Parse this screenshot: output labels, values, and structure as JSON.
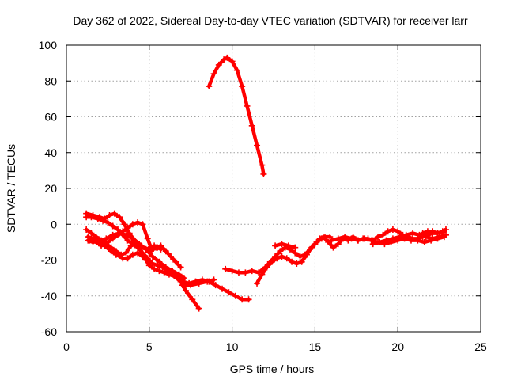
{
  "chart_data": {
    "type": "line",
    "title": "Day 362 of 2022, Sidereal Day-to-day VTEC variation (SDTVAR) for receiver larr",
    "xlabel": "GPS time / hours",
    "ylabel": "SDTVAR / TECUs",
    "xlim": [
      0,
      25
    ],
    "ylim": [
      -60,
      100
    ],
    "xticks": [
      0,
      5,
      10,
      15,
      20,
      25
    ],
    "yticks": [
      -60,
      -40,
      -20,
      0,
      20,
      40,
      60,
      80,
      100
    ],
    "grid": true,
    "series_color": "#ff0000",
    "series": [
      {
        "x": [
          8.6,
          8.9,
          9.2,
          9.5,
          9.7,
          10.0,
          10.3,
          10.6,
          10.9,
          11.2,
          11.5,
          11.8,
          11.9
        ],
        "y": [
          77,
          84,
          89,
          92,
          93,
          91,
          86,
          77,
          66,
          55,
          44,
          33,
          28
        ]
      },
      {
        "x": [
          1.2,
          1.6,
          2.0,
          2.3,
          2.6,
          2.9,
          3.2,
          3.5,
          3.8,
          4.1,
          4.4,
          4.7,
          5.0,
          5.3,
          5.6,
          5.9,
          6.2,
          6.5,
          6.9,
          7.2,
          7.6,
          8.0
        ],
        "y": [
          6,
          5,
          4,
          3,
          5,
          6,
          4,
          0,
          -5,
          -9,
          -13,
          -18,
          -23,
          -25,
          -26,
          -27,
          -28,
          -29,
          -32,
          -37,
          -42,
          -47
        ]
      },
      {
        "x": [
          1.2,
          1.5,
          1.9,
          2.2,
          2.5,
          2.8,
          3.1,
          3.4,
          3.7,
          4.0,
          4.3,
          4.6,
          4.9,
          5.2,
          5.5,
          5.8,
          6.1,
          6.4,
          6.7,
          7.0
        ],
        "y": [
          4,
          4,
          3,
          2,
          1,
          -1,
          -3,
          -6,
          -9,
          -11,
          -13,
          -16,
          -19,
          -22,
          -23,
          -24,
          -26,
          -27,
          -29,
          -31
        ]
      },
      {
        "x": [
          1.2,
          1.5,
          1.8,
          2.1,
          2.4,
          2.7,
          3.0,
          3.3,
          3.6,
          3.9,
          4.2,
          4.5,
          4.8,
          5.1,
          5.4,
          5.7,
          6.0,
          6.3,
          6.6,
          6.9
        ],
        "y": [
          -3,
          -5,
          -7,
          -9,
          -11,
          -13,
          -15,
          -17,
          -16,
          -12,
          -10,
          -12,
          -14,
          -15,
          -13,
          -12,
          -15,
          -18,
          -21,
          -24
        ]
      },
      {
        "x": [
          1.3,
          1.6,
          2.0,
          2.4,
          2.8,
          3.2,
          3.6,
          4.0,
          4.4,
          4.8,
          5.2,
          5.6,
          6.0,
          6.4,
          6.8,
          7.1
        ],
        "y": [
          -9,
          -10,
          -9,
          -8,
          -6,
          -5,
          -6,
          -8,
          -11,
          -14,
          -18,
          -21,
          -24,
          -26,
          -28,
          -30
        ]
      },
      {
        "x": [
          1.3,
          1.6,
          1.9,
          2.2,
          2.5,
          2.8,
          3.1,
          3.4,
          3.7,
          4.0,
          4.3,
          4.6,
          4.9,
          5.1
        ],
        "y": [
          -7,
          -8,
          -10,
          -11,
          -10,
          -8,
          -6,
          -4,
          -2,
          0,
          1,
          0,
          -8,
          -13
        ]
      },
      {
        "x": [
          1.4,
          1.8,
          2.1
        ],
        "y": [
          -9,
          -10,
          -12
        ]
      },
      {
        "x": [
          2.3,
          2.7,
          3.0,
          3.4,
          3.7,
          4.0,
          4.3,
          4.6,
          4.8
        ],
        "y": [
          -12,
          -15,
          -17,
          -19,
          -19,
          -17,
          -16,
          -18,
          -20
        ]
      },
      {
        "x": [
          5.0,
          5.3,
          5.5,
          5.7
        ],
        "y": [
          -13,
          -12,
          -13,
          -14
        ]
      },
      {
        "x": [
          7.0,
          7.4,
          7.8,
          8.2,
          8.6,
          9.0,
          9.4,
          9.8,
          10.2,
          10.6,
          11.0
        ],
        "y": [
          -32,
          -33,
          -32,
          -31,
          -32,
          -34,
          -36,
          -38,
          -40,
          -42,
          -42
        ]
      },
      {
        "x": [
          7.0,
          7.5,
          8.0,
          8.5,
          8.9
        ],
        "y": [
          -34,
          -34,
          -33,
          -32,
          -31
        ]
      },
      {
        "x": [
          9.6,
          10.0,
          10.4,
          10.8,
          11.2,
          11.6,
          12.0,
          12.3,
          12.6,
          12.9,
          13.2,
          13.5,
          13.8,
          14.1,
          14.4,
          14.7,
          15.0,
          15.3,
          15.6,
          15.9
        ],
        "y": [
          -25,
          -26,
          -27,
          -27,
          -26,
          -27,
          -24,
          -21,
          -18,
          -15,
          -13,
          -14,
          -16,
          -18,
          -17,
          -14,
          -11,
          -8,
          -7,
          -7
        ]
      },
      {
        "x": [
          11.5,
          11.8,
          12.1,
          12.4,
          12.7,
          13.0,
          13.3,
          13.6,
          13.9,
          14.2,
          14.5,
          14.8,
          15.1,
          15.4
        ],
        "y": [
          -33,
          -28,
          -24,
          -21,
          -19,
          -18,
          -19,
          -21,
          -22,
          -21,
          -17,
          -13,
          -10,
          -8
        ]
      },
      {
        "x": [
          12.6,
          13.0,
          13.4,
          13.8
        ],
        "y": [
          -12,
          -11,
          -12,
          -13
        ]
      },
      {
        "x": [
          15.5,
          15.8,
          16.1,
          16.4,
          16.7,
          17.0,
          17.3,
          17.6,
          17.9,
          18.2,
          18.5,
          18.8,
          19.1,
          19.4,
          19.7,
          20.0,
          20.3,
          20.6,
          20.9,
          21.2,
          21.5,
          21.8,
          22.1,
          22.4,
          22.8
        ],
        "y": [
          -7,
          -10,
          -13,
          -11,
          -8,
          -9,
          -7,
          -9,
          -8,
          -8,
          -9,
          -7,
          -6,
          -4,
          -3,
          -4,
          -6,
          -7,
          -8,
          -8,
          -7,
          -6,
          -5,
          -5,
          -4
        ]
      },
      {
        "x": [
          16.0,
          16.4,
          16.8,
          17.2,
          17.6,
          18.0,
          18.4,
          18.8,
          19.2,
          19.6,
          20.0,
          20.4,
          20.8,
          21.2,
          21.6,
          22.0,
          22.4,
          22.8
        ],
        "y": [
          -9,
          -8,
          -7,
          -8,
          -9,
          -8,
          -9,
          -10,
          -11,
          -10,
          -9,
          -8,
          -9,
          -9,
          -10,
          -9,
          -8,
          -7
        ]
      },
      {
        "x": [
          18.5,
          18.9,
          19.3,
          19.7,
          20.1,
          20.5,
          20.9,
          21.3,
          21.7,
          22.1,
          22.5,
          22.9
        ],
        "y": [
          -11,
          -10,
          -9,
          -8,
          -7,
          -6,
          -5,
          -6,
          -7,
          -8,
          -7,
          -6
        ]
      },
      {
        "x": [
          21.5,
          21.8,
          22.1,
          22.4,
          22.7,
          22.9
        ],
        "y": [
          -5,
          -4,
          -4,
          -5,
          -4,
          -3
        ]
      }
    ]
  }
}
